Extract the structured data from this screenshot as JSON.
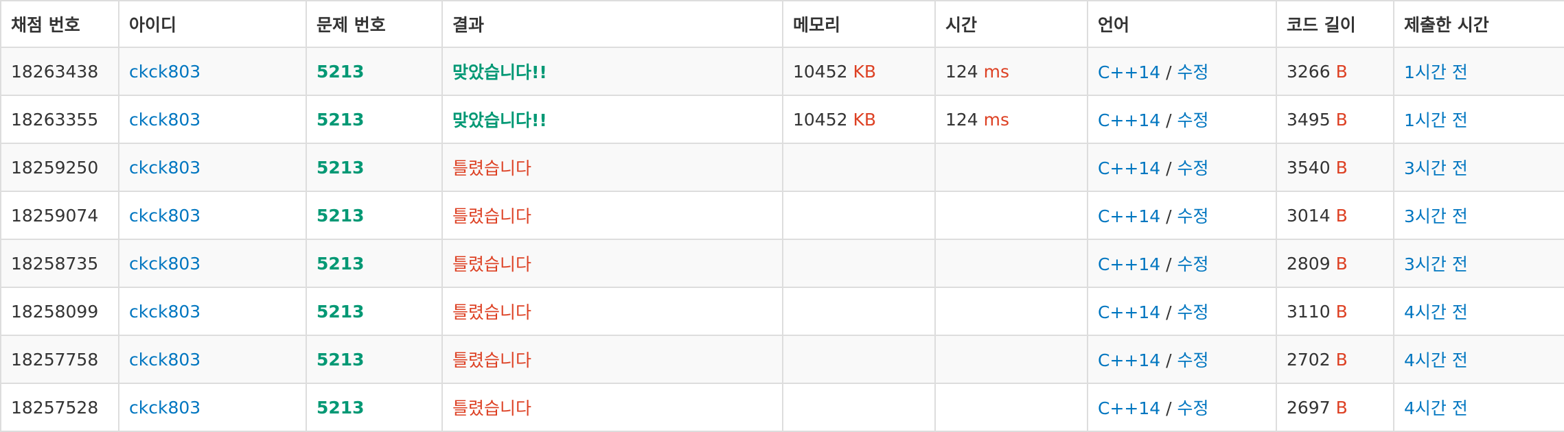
{
  "headers": [
    "채점 번호",
    "아이디",
    "문제 번호",
    "결과",
    "메모리",
    "시간",
    "언어",
    "코드 길이",
    "제출한 시간"
  ],
  "units": {
    "memory": "KB",
    "time": "ms",
    "code": "B"
  },
  "lang_separator": "/",
  "rows": [
    {
      "id": "18263438",
      "user": "ckck803",
      "problem": "5213",
      "result": "맞았습니다!!",
      "status": "accepted",
      "memory": "10452",
      "time": "124",
      "lang": "C++14",
      "edit": "수정",
      "code_len": "3266",
      "submitted": "1시간 전"
    },
    {
      "id": "18263355",
      "user": "ckck803",
      "problem": "5213",
      "result": "맞았습니다!!",
      "status": "accepted",
      "memory": "10452",
      "time": "124",
      "lang": "C++14",
      "edit": "수정",
      "code_len": "3495",
      "submitted": "1시간 전"
    },
    {
      "id": "18259250",
      "user": "ckck803",
      "problem": "5213",
      "result": "틀렸습니다",
      "status": "wrong",
      "memory": "",
      "time": "",
      "lang": "C++14",
      "edit": "수정",
      "code_len": "3540",
      "submitted": "3시간 전"
    },
    {
      "id": "18259074",
      "user": "ckck803",
      "problem": "5213",
      "result": "틀렸습니다",
      "status": "wrong",
      "memory": "",
      "time": "",
      "lang": "C++14",
      "edit": "수정",
      "code_len": "3014",
      "submitted": "3시간 전"
    },
    {
      "id": "18258735",
      "user": "ckck803",
      "problem": "5213",
      "result": "틀렸습니다",
      "status": "wrong",
      "memory": "",
      "time": "",
      "lang": "C++14",
      "edit": "수정",
      "code_len": "2809",
      "submitted": "3시간 전"
    },
    {
      "id": "18258099",
      "user": "ckck803",
      "problem": "5213",
      "result": "틀렸습니다",
      "status": "wrong",
      "memory": "",
      "time": "",
      "lang": "C++14",
      "edit": "수정",
      "code_len": "3110",
      "submitted": "4시간 전"
    },
    {
      "id": "18257758",
      "user": "ckck803",
      "problem": "5213",
      "result": "틀렸습니다",
      "status": "wrong",
      "memory": "",
      "time": "",
      "lang": "C++14",
      "edit": "수정",
      "code_len": "2702",
      "submitted": "4시간 전"
    },
    {
      "id": "18257528",
      "user": "ckck803",
      "problem": "5213",
      "result": "틀렸습니다",
      "status": "wrong",
      "memory": "",
      "time": "",
      "lang": "C++14",
      "edit": "수정",
      "code_len": "2697",
      "submitted": "4시간 전"
    }
  ],
  "colors": {
    "link": "#0076c0",
    "accepted": "#009874",
    "wrong": "#dd4124",
    "unit": "#dd4124",
    "border": "#dddddd",
    "stripe": "#f9f9f9"
  }
}
